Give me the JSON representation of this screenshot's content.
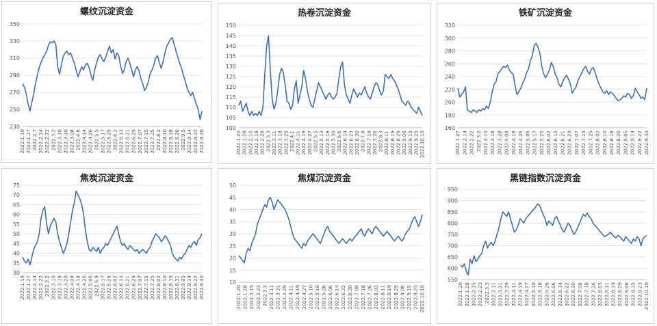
{
  "chart_data": [
    {
      "type": "line",
      "title": "螺纹沉淀资金",
      "color": "#3c6eb4",
      "ylim": [
        230,
        350
      ],
      "yticks": [
        230,
        250,
        270,
        290,
        310,
        330,
        350
      ],
      "grid": true,
      "xticks": [
        "2022.1.19",
        "2022.1.27",
        "2022.2.7",
        "2022.2.14",
        "2022.2.22",
        "2022.3.2",
        "2022.3.10",
        "2022.3.18",
        "2022.3.28",
        "2022.4.6",
        "2022.4.14",
        "2022.4.26",
        "2022.5.5",
        "2022.5.17",
        "2022.5.25",
        "2022.6.2",
        "2022.6.13",
        "2022.6.21",
        "2022.6.29",
        "2022.7.07",
        "2022.7.15",
        "2022.7.25",
        "2022.8.2",
        "2022.8.10",
        "2022.8.18",
        "2022.8.26",
        "2022.9.5",
        "2022.9.14",
        "2022.9.22",
        "2022.9.30"
      ],
      "values": [
        280,
        276,
        268,
        256,
        248,
        258,
        268,
        280,
        290,
        299,
        305,
        310,
        314,
        318,
        325,
        329,
        328,
        330,
        326,
        300,
        291,
        302,
        312,
        316,
        318,
        314,
        316,
        310,
        304,
        296,
        288,
        294,
        300,
        296,
        302,
        304,
        299,
        290,
        284,
        296,
        304,
        311,
        314,
        309,
        306,
        311,
        318,
        324,
        316,
        320,
        309,
        316,
        313,
        301,
        292,
        296,
        306,
        310,
        304,
        296,
        288,
        296,
        300,
        295,
        286,
        280,
        272,
        276,
        282,
        292,
        296,
        302,
        310,
        313,
        304,
        298,
        306,
        316,
        324,
        328,
        332,
        334,
        326,
        318,
        311,
        304,
        298,
        290,
        283,
        275,
        270,
        266,
        270,
        262,
        256,
        250,
        238,
        248
      ]
    },
    {
      "type": "line",
      "title": "热卷沉淀资金",
      "color": "#3c6eb4",
      "ylim": [
        100,
        150
      ],
      "yticks": [
        100,
        105,
        110,
        115,
        120,
        125,
        130,
        135,
        140,
        145,
        150
      ],
      "grid": true,
      "xticks": [
        "2022.1.20",
        "2022.1.28",
        "2022.2.10",
        "2022.2.18",
        "2022.2.28",
        "2022.3.3",
        "2022.3.11",
        "2022.3.18",
        "2022.3.25",
        "2022.4.1",
        "2022.4.11",
        "2022.4.19",
        "2022.4.27",
        "2022.5.5",
        "2022.5.13",
        "2022.5.18",
        "2022.5.30",
        "2022.6.6",
        "2022.6.14",
        "2022.6.23",
        "2022.6.30",
        "2022.7.8",
        "2022.7.18",
        "2022.7.26",
        "2022.8.3",
        "2022.8.11",
        "2022.8.19",
        "2022.8.29",
        "2022.9.06",
        "2022.9.15",
        "2022.9.23",
        "2022.10.10"
      ],
      "values": [
        111,
        113,
        108,
        110,
        112,
        108,
        106,
        108,
        106,
        107,
        106,
        108,
        106,
        110,
        126,
        140,
        145,
        128,
        114,
        109,
        112,
        118,
        126,
        129,
        127,
        121,
        113,
        112,
        109,
        111,
        119,
        123,
        112,
        116,
        120,
        128,
        124,
        118,
        114,
        111,
        110,
        114,
        118,
        122,
        120,
        118,
        116,
        114,
        116,
        117,
        115,
        114,
        115,
        117,
        124,
        130,
        132,
        121,
        116,
        114,
        112,
        116,
        119,
        117,
        115,
        117,
        116,
        118,
        120,
        117,
        115,
        114,
        117,
        120,
        122,
        121,
        118,
        116,
        118,
        126,
        125,
        124,
        126,
        124,
        123,
        121,
        119,
        116,
        113,
        112,
        111,
        113,
        112,
        110,
        109,
        108,
        107,
        110,
        108,
        106
      ]
    },
    {
      "type": "line",
      "title": "铁矿沉淀资金",
      "color": "#3c6eb4",
      "ylim": [
        160,
        320
      ],
      "yticks": [
        160,
        180,
        200,
        220,
        240,
        260,
        280,
        300,
        320
      ],
      "grid": true,
      "xticks": [
        "2022.1.27",
        "2022.2.14",
        "2022.2.22",
        "2022.3.2",
        "2022.3.10",
        "2022.3.18",
        "2022.3.28",
        "2022.4.08",
        "2022.4.18",
        "2022.4.26",
        "2022.5.06",
        "2022.5.17",
        "2022.5.25",
        "2022.6.02",
        "2022.6.13",
        "2022.6.21",
        "2022.6.29",
        "2022.7.07",
        "2022.7.15",
        "2022.7.25",
        "2022.8.02",
        "2022.8.10",
        "2022.8.18",
        "2022.8.26",
        "2022.9.05",
        "2022.9.14",
        "2022.9.22",
        "2022.9.30"
      ],
      "values": [
        222,
        208,
        212,
        216,
        224,
        188,
        186,
        184,
        188,
        186,
        184,
        188,
        186,
        190,
        188,
        194,
        190,
        200,
        216,
        228,
        232,
        244,
        248,
        252,
        256,
        254,
        258,
        250,
        246,
        244,
        226,
        212,
        216,
        222,
        230,
        236,
        246,
        252,
        264,
        272,
        288,
        292,
        286,
        276,
        256,
        244,
        238,
        244,
        250,
        262,
        256,
        244,
        238,
        228,
        224,
        232,
        238,
        242,
        236,
        228,
        214,
        220,
        224,
        234,
        240,
        246,
        252,
        256,
        248,
        244,
        252,
        254,
        246,
        236,
        228,
        222,
        216,
        214,
        218,
        212,
        216,
        214,
        210,
        206,
        202,
        204,
        206,
        210,
        208,
        214,
        212,
        206,
        210,
        222,
        216,
        212,
        206,
        208,
        204,
        222
      ]
    },
    {
      "type": "line",
      "title": "焦炭沉淀资金",
      "color": "#3c6eb4",
      "ylim": [
        30,
        75
      ],
      "yticks": [
        30,
        35,
        40,
        45,
        50,
        55,
        60,
        65,
        70,
        75
      ],
      "grid": true,
      "xticks": [
        "2022.1.19",
        "2022.1.27",
        "2022.2.14",
        "2022.2.22",
        "2022.3.2",
        "2022.3.10",
        "2022.3.18",
        "2022.3.28",
        "2022.4.08",
        "2022.4.18",
        "2022.4.26",
        "2022.5.06",
        "2022.5.9",
        "2022.5.17",
        "2022.5.25",
        "2022.6.02",
        "2022.6.13",
        "2022.6.21",
        "2022.6.29",
        "2022.7.07",
        "2022.7.15",
        "2022.7.25",
        "2022.8.02",
        "2022.8.10",
        "2022.8.19",
        "2022.8.31",
        "2022.9.05",
        "2022.9.14",
        "2022.9.22",
        "2022.9.30"
      ],
      "values": [
        38,
        36,
        35,
        37,
        34,
        38,
        42,
        44,
        46,
        50,
        58,
        62,
        64,
        55,
        50,
        54,
        56,
        58,
        56,
        50,
        46,
        43,
        40,
        42,
        45,
        50,
        56,
        62,
        66,
        72,
        70,
        68,
        65,
        60,
        52,
        46,
        42,
        41,
        43,
        42,
        41,
        43,
        40,
        42,
        43,
        45,
        44,
        46,
        48,
        50,
        52,
        54,
        50,
        46,
        44,
        45,
        43,
        42,
        44,
        43,
        42,
        41,
        42,
        40,
        41,
        42,
        41,
        40,
        42,
        43,
        46,
        48,
        50,
        49,
        48,
        46,
        47,
        49,
        48,
        46,
        44,
        40,
        38,
        37,
        36,
        38,
        37,
        39,
        40,
        42,
        44,
        43,
        45,
        46,
        44,
        47,
        48,
        50
      ]
    },
    {
      "type": "line",
      "title": "焦煤沉淀资金",
      "color": "#3c6eb4",
      "ylim": [
        10,
        50
      ],
      "yticks": [
        10,
        15,
        20,
        25,
        30,
        35,
        40,
        45,
        50
      ],
      "grid": true,
      "xticks": [
        "2022.1.20",
        "2022.1.28",
        "2022.2.15",
        "2022.2.23",
        "2022.3.3",
        "2022.3.11",
        "2022.3.21",
        "2022.3.29",
        "2022.4.11",
        "2022.4.19",
        "2022.4.27",
        "2022.5.10",
        "2022.5.18",
        "2022.5.26",
        "2022.6.06",
        "2022.6.14",
        "2022.6.22",
        "2022.6.30",
        "2022.7.08",
        "2022.7.18",
        "2022.7.26",
        "2022.8.03",
        "2022.8.11",
        "2022.8.19",
        "2022.8.29",
        "2022.9.06",
        "2022.9.15",
        "2022.9.23",
        "2022.10.10"
      ],
      "values": [
        21,
        20,
        19,
        18,
        22,
        24,
        23,
        26,
        28,
        30,
        34,
        36,
        38,
        40,
        42,
        41,
        44,
        45,
        43,
        40,
        42,
        44,
        43,
        42,
        41,
        40,
        38,
        36,
        33,
        30,
        28,
        27,
        26,
        25,
        24,
        26,
        25,
        27,
        28,
        29,
        30,
        29,
        28,
        27,
        26,
        28,
        30,
        32,
        33,
        31,
        30,
        29,
        28,
        27,
        26,
        27,
        28,
        27,
        26,
        27,
        28,
        27,
        28,
        29,
        30,
        31,
        32,
        30,
        29,
        31,
        32,
        31,
        30,
        32,
        33,
        32,
        31,
        30,
        29,
        30,
        31,
        30,
        29,
        28,
        27,
        28,
        29,
        28,
        27,
        28,
        30,
        31,
        32,
        34,
        36,
        37,
        35,
        33,
        35,
        38
      ]
    },
    {
      "type": "line",
      "title": "黑链指数沉淀资金",
      "color": "#3c6eb4",
      "ylim": [
        550,
        950
      ],
      "yticks": [
        550,
        600,
        650,
        700,
        750,
        800,
        850,
        900,
        950
      ],
      "grid": true,
      "xticks": [
        "2022.1.20",
        "2022.1.28",
        "2022.2.15",
        "2022.2.23",
        "2022.3.3",
        "2022.3.11",
        "2022.3.21",
        "2022.3.29",
        "2022.4.11",
        "2022.4.19",
        "2022.4.27",
        "2022.5.10",
        "2022.5.18",
        "2022.5.26",
        "2022.6.06",
        "2022.6.14",
        "2022.6.22",
        "2022.6.30",
        "2022.7.08",
        "2022.7.18",
        "2022.7.26",
        "2022.8.03",
        "2022.8.11",
        "2022.8.19",
        "2022.8.29",
        "2022.9.06",
        "2022.9.15",
        "2022.9.23",
        "2022.10.10"
      ],
      "values": [
        615,
        605,
        620,
        585,
        570,
        640,
        620,
        655,
        630,
        640,
        655,
        665,
        700,
        720,
        690,
        705,
        715,
        700,
        720,
        750,
        780,
        820,
        850,
        840,
        830,
        850,
        820,
        790,
        760,
        770,
        790,
        820,
        810,
        800,
        820,
        830,
        840,
        850,
        860,
        870,
        885,
        880,
        860,
        840,
        820,
        790,
        810,
        800,
        790,
        820,
        830,
        810,
        790,
        770,
        760,
        780,
        800,
        790,
        770,
        750,
        760,
        780,
        800,
        820,
        840,
        830,
        845,
        830,
        820,
        800,
        790,
        780,
        770,
        760,
        750,
        740,
        745,
        750,
        760,
        750,
        740,
        735,
        745,
        740,
        730,
        720,
        740,
        730,
        720,
        710,
        730,
        720,
        740,
        730,
        700,
        730,
        740,
        745
      ]
    }
  ]
}
